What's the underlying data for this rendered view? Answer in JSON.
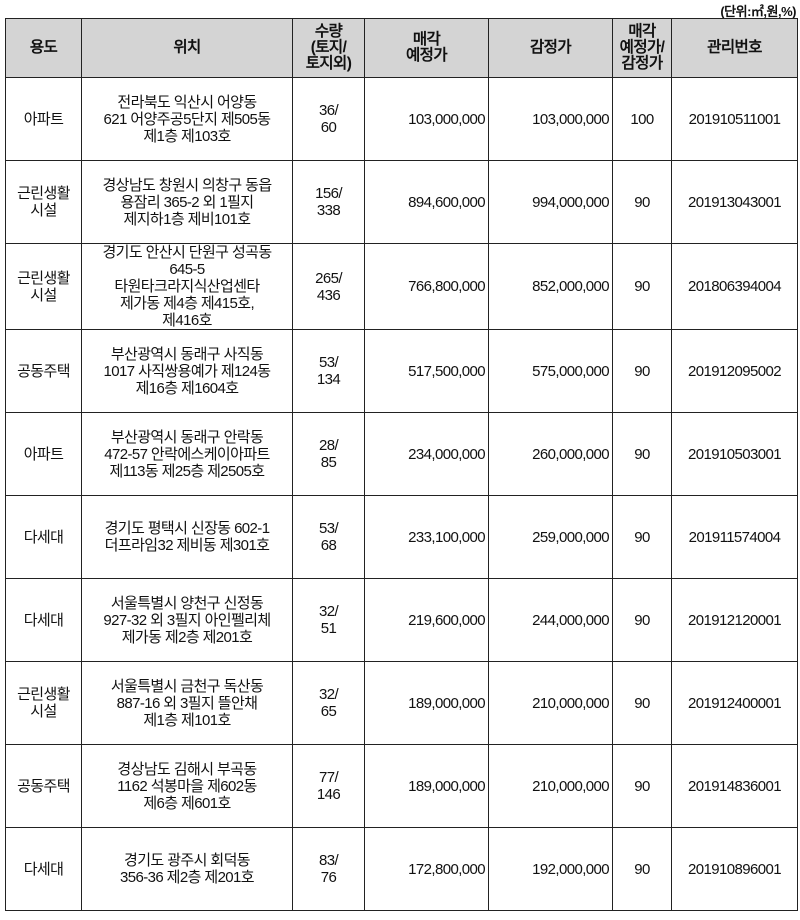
{
  "unit_note": "(단위:㎡,원,%)",
  "header": {
    "use": "용도",
    "location": "위치",
    "quantity": [
      "수량",
      "(토지/",
      "토지외)"
    ],
    "sale_price": [
      "매각",
      "예정가"
    ],
    "appraisal": "감정가",
    "ratio": [
      "매각",
      "예정가/",
      "감정가"
    ],
    "mgmt_no": "관리번호"
  },
  "header_bg": "#d4d4d4",
  "rows": [
    {
      "use": [
        "아파트"
      ],
      "location": [
        "전라북도 익산시  어양동",
        "621 어양주공5단지 제505동",
        "제1층 제103호"
      ],
      "quantity": [
        "36/",
        "60"
      ],
      "sale_price": "103,000,000",
      "appraisal": "103,000,000",
      "ratio": "100",
      "mgmt_no": "201910511001"
    },
    {
      "use": [
        "근린생활",
        "시설"
      ],
      "location": [
        "경상남도 창원시 의창구 동읍",
        "용잠리 365-2 외 1필지",
        "제지하1층 제비101호"
      ],
      "quantity": [
        "156/",
        "338"
      ],
      "sale_price": "894,600,000",
      "appraisal": "994,000,000",
      "ratio": "90",
      "mgmt_no": "201913043001"
    },
    {
      "use": [
        "근린생활",
        "시설"
      ],
      "location": [
        "경기도 안산시 단원구 성곡동",
        "645-5",
        "타원타크라지식산업센타",
        "제가동 제4층 제415호,",
        "제416호"
      ],
      "quantity": [
        "265/",
        "436"
      ],
      "sale_price": "766,800,000",
      "appraisal": "852,000,000",
      "ratio": "90",
      "mgmt_no": "201806394004"
    },
    {
      "use": [
        "공동주택"
      ],
      "location": [
        "부산광역시 동래구 사직동",
        "1017 사직쌍용예가 제124동",
        "제16층 제1604호"
      ],
      "quantity": [
        "53/",
        "134"
      ],
      "sale_price": "517,500,000",
      "appraisal": "575,000,000",
      "ratio": "90",
      "mgmt_no": "201912095002"
    },
    {
      "use": [
        "아파트"
      ],
      "location": [
        "부산광역시 동래구 안락동",
        "472-57 안락에스케이아파트",
        "제113동 제25층 제2505호"
      ],
      "quantity": [
        "28/",
        "85"
      ],
      "sale_price": "234,000,000",
      "appraisal": "260,000,000",
      "ratio": "90",
      "mgmt_no": "201910503001"
    },
    {
      "use": [
        "다세대"
      ],
      "location": [
        "경기도 평택시 신장동 602-1",
        "더프라임32 제비동 제301호"
      ],
      "quantity": [
        "53/",
        "68"
      ],
      "sale_price": "233,100,000",
      "appraisal": "259,000,000",
      "ratio": "90",
      "mgmt_no": "201911574004"
    },
    {
      "use": [
        "다세대"
      ],
      "location": [
        "서울특별시 양천구 신정동",
        "927-32 외 3필지 아인펠리체",
        "제가동 제2층 제201호"
      ],
      "quantity": [
        "32/",
        "51"
      ],
      "sale_price": "219,600,000",
      "appraisal": "244,000,000",
      "ratio": "90",
      "mgmt_no": "201912120001"
    },
    {
      "use": [
        "근린생활",
        "시설"
      ],
      "location": [
        "서울특별시 금천구 독산동",
        "887-16 외 3필지 뜰안채",
        "제1층 제101호"
      ],
      "quantity": [
        "32/",
        "65"
      ],
      "sale_price": "189,000,000",
      "appraisal": "210,000,000",
      "ratio": "90",
      "mgmt_no": "201912400001"
    },
    {
      "use": [
        "공동주택"
      ],
      "location": [
        "경상남도 김해시 부곡동",
        "1162 석봉마을 제602동",
        "제6층 제601호"
      ],
      "quantity": [
        "77/",
        "146"
      ],
      "sale_price": "189,000,000",
      "appraisal": "210,000,000",
      "ratio": "90",
      "mgmt_no": "201914836001"
    },
    {
      "use": [
        "다세대"
      ],
      "location": [
        "경기도 광주시 회덕동",
        "356-36 제2층 제201호"
      ],
      "quantity": [
        "83/",
        "76"
      ],
      "sale_price": "172,800,000",
      "appraisal": "192,000,000",
      "ratio": "90",
      "mgmt_no": "201910896001"
    }
  ]
}
